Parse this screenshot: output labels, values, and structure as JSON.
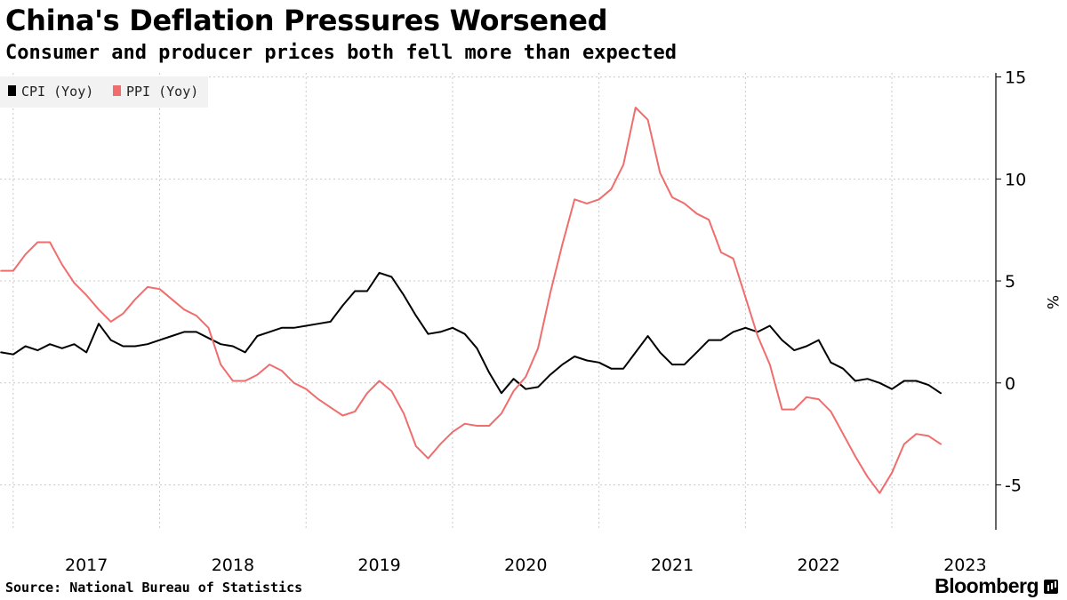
{
  "chart_data": {
    "type": "line",
    "title": "China's Deflation Pressures Worsened",
    "subtitle": "Consumer and producer prices both fell more than expected",
    "ylabel": "%",
    "ylim": [
      -7.2,
      15.2
    ],
    "yticks": [
      15,
      10,
      5,
      0,
      -5
    ],
    "xlim": [
      2016.91,
      2023.71
    ],
    "year_ticks": [
      2017,
      2018,
      2019,
      2020,
      2021,
      2022,
      2023
    ],
    "year_labels": [
      "2017",
      "2018",
      "2019",
      "2020",
      "2021",
      "2022",
      "2023"
    ],
    "y_axis_position": "right",
    "legend_position": "top-left",
    "grid": true,
    "x_start": 2016.917,
    "x_step": 0.08333,
    "series": [
      {
        "name": "CPI (Yoy)",
        "color": "#000000",
        "values": [
          1.5,
          1.4,
          1.8,
          1.6,
          1.9,
          1.7,
          1.9,
          1.5,
          2.9,
          2.1,
          1.8,
          1.8,
          1.9,
          2.1,
          2.3,
          2.5,
          2.5,
          2.2,
          1.9,
          1.8,
          1.5,
          2.3,
          2.5,
          2.7,
          2.7,
          2.8,
          2.9,
          3.0,
          3.8,
          4.5,
          4.5,
          5.4,
          5.2,
          4.3,
          3.3,
          2.4,
          2.5,
          2.7,
          2.4,
          1.7,
          0.5,
          -0.5,
          0.2,
          -0.3,
          -0.2,
          0.4,
          0.9,
          1.3,
          1.1,
          1.0,
          0.7,
          0.7,
          1.5,
          2.3,
          1.5,
          0.9,
          0.9,
          1.5,
          2.1,
          2.1,
          2.5,
          2.7,
          2.5,
          2.8,
          2.1,
          1.6,
          1.8,
          2.1,
          1.0,
          0.7,
          0.1,
          0.2,
          0.0,
          -0.3,
          0.1,
          0.1,
          -0.1,
          -0.5
        ]
      },
      {
        "name": "PPI (Yoy)",
        "color": "#f06d6d",
        "values": [
          5.5,
          5.5,
          6.3,
          6.9,
          6.9,
          5.8,
          4.9,
          4.3,
          3.6,
          3.0,
          3.4,
          4.1,
          4.7,
          4.6,
          4.1,
          3.6,
          3.3,
          2.7,
          0.9,
          0.1,
          0.1,
          0.4,
          0.9,
          0.6,
          0.0,
          -0.3,
          -0.8,
          -1.2,
          -1.6,
          -1.4,
          -0.5,
          0.1,
          -0.4,
          -1.5,
          -3.1,
          -3.7,
          -3.0,
          -2.4,
          -2.0,
          -2.1,
          -2.1,
          -1.5,
          -0.4,
          0.3,
          1.7,
          4.4,
          6.8,
          9.0,
          8.8,
          9.0,
          9.5,
          10.7,
          13.5,
          12.9,
          10.3,
          9.1,
          8.8,
          8.3,
          8.0,
          6.4,
          6.1,
          4.2,
          2.3,
          0.9,
          -1.3,
          -1.3,
          -0.7,
          -0.8,
          -1.4,
          -2.5,
          -3.6,
          -4.6,
          -5.4,
          -4.4,
          -3.0,
          -2.5,
          -2.6,
          -3.0
        ]
      }
    ]
  },
  "source_text": "Source: National Bureau of Statistics",
  "brand_text": "Bloomberg"
}
